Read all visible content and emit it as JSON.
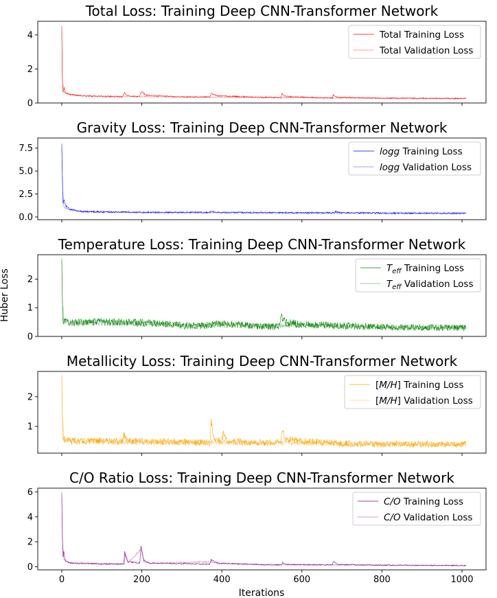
{
  "figure": {
    "ylabel": "Huber Loss",
    "xlabel": "Iterations"
  },
  "chart_data": [
    {
      "type": "line",
      "title": "Total Loss: Training Deep CNN-Transformer Network",
      "color": "#ff0000",
      "xlim": [
        -60,
        1060
      ],
      "ylim": [
        0,
        4.8
      ],
      "yticks": [
        0,
        2,
        4
      ],
      "ytick_labels": [
        "0",
        "2",
        "4"
      ],
      "xticks": [
        0,
        200,
        400,
        600,
        800,
        1000
      ],
      "xticklabels_visible": false,
      "legend": {
        "position": "top-right",
        "entries": [
          {
            "label_pre": "",
            "label_math": "",
            "label_sub": "",
            "label_post": "Total Training Loss",
            "style": "solid"
          },
          {
            "label_pre": "",
            "label_math": "",
            "label_sub": "",
            "label_post": "Total Validation Loss",
            "style": "dotted"
          }
        ]
      },
      "series": [
        {
          "kind": "train",
          "style": "solid",
          "x_start": 0,
          "x_end": 1010,
          "noise": 0.03,
          "points": [
            [
              0,
              4.5
            ],
            [
              1,
              1.8
            ],
            [
              3,
              0.65
            ],
            [
              6,
              0.9
            ],
            [
              10,
              0.6
            ],
            [
              20,
              0.5
            ],
            [
              50,
              0.42
            ],
            [
              100,
              0.38
            ],
            [
              150,
              0.37
            ],
            [
              157,
              0.6
            ],
            [
              165,
              0.42
            ],
            [
              195,
              0.38
            ],
            [
              199,
              0.7
            ],
            [
              210,
              0.45
            ],
            [
              300,
              0.36
            ],
            [
              370,
              0.35
            ],
            [
              373,
              0.58
            ],
            [
              390,
              0.42
            ],
            [
              500,
              0.33
            ],
            [
              548,
              0.32
            ],
            [
              550,
              0.55
            ],
            [
              560,
              0.38
            ],
            [
              650,
              0.3
            ],
            [
              676,
              0.3
            ],
            [
              678,
              0.45
            ],
            [
              690,
              0.33
            ],
            [
              800,
              0.28
            ],
            [
              1010,
              0.26
            ]
          ]
        },
        {
          "kind": "val",
          "style": "dotted",
          "x_start": 0,
          "x_end": 1010,
          "noise": 0.02,
          "points": [
            [
              0,
              4.2
            ],
            [
              2,
              1.2
            ],
            [
              5,
              0.7
            ],
            [
              10,
              0.55
            ],
            [
              50,
              0.42
            ],
            [
              200,
              0.37
            ],
            [
              400,
              0.34
            ],
            [
              600,
              0.31
            ],
            [
              800,
              0.28
            ],
            [
              1010,
              0.27
            ]
          ]
        }
      ]
    },
    {
      "type": "line",
      "title": "Gravity Loss: Training Deep CNN-Transformer Network",
      "color": "#0000ff",
      "xlim": [
        -60,
        1060
      ],
      "ylim": [
        -0.3,
        8.6
      ],
      "yticks": [
        0,
        2.5,
        5,
        7.5
      ],
      "ytick_labels": [
        "0.0",
        "2.5",
        "5.0",
        "7.5"
      ],
      "xticks": [
        0,
        200,
        400,
        600,
        800,
        1000
      ],
      "xticklabels_visible": false,
      "legend": {
        "position": "top-right",
        "entries": [
          {
            "label_pre": "",
            "label_math": "logg",
            "label_sub": "",
            "label_post": " Training Loss",
            "style": "solid"
          },
          {
            "label_pre": "",
            "label_math": "logg",
            "label_sub": "",
            "label_post": " Validation Loss",
            "style": "dotted"
          }
        ]
      },
      "series": [
        {
          "kind": "train",
          "style": "solid",
          "x_start": 0,
          "x_end": 1010,
          "noise": 0.06,
          "points": [
            [
              0,
              8.1
            ],
            [
              1,
              5.5
            ],
            [
              3,
              1.5
            ],
            [
              6,
              1.8
            ],
            [
              10,
              1.2
            ],
            [
              20,
              0.8
            ],
            [
              50,
              0.6
            ],
            [
              100,
              0.55
            ],
            [
              200,
              0.5
            ],
            [
              370,
              0.5
            ],
            [
              373,
              0.65
            ],
            [
              385,
              0.5
            ],
            [
              600,
              0.45
            ],
            [
              680,
              0.45
            ],
            [
              683,
              0.6
            ],
            [
              700,
              0.45
            ],
            [
              850,
              0.4
            ],
            [
              1010,
              0.4
            ]
          ]
        },
        {
          "kind": "val",
          "style": "dotted",
          "x_start": 0,
          "x_end": 1010,
          "noise": 0.04,
          "points": [
            [
              0,
              7.5
            ],
            [
              2,
              3.0
            ],
            [
              5,
              1.2
            ],
            [
              10,
              0.9
            ],
            [
              50,
              0.6
            ],
            [
              200,
              0.5
            ],
            [
              600,
              0.45
            ],
            [
              1010,
              0.42
            ]
          ]
        }
      ]
    },
    {
      "type": "line",
      "title": "Temperature Loss: Training Deep CNN-Transformer Network",
      "color": "#008000",
      "xlim": [
        -60,
        1060
      ],
      "ylim": [
        0,
        2.85
      ],
      "yticks": [
        0,
        1,
        2
      ],
      "ytick_labels": [
        "0",
        "1",
        "2"
      ],
      "xticks": [
        0,
        200,
        400,
        600,
        800,
        1000
      ],
      "xticklabels_visible": false,
      "legend": {
        "position": "top-right",
        "entries": [
          {
            "label_pre": "",
            "label_math": "T",
            "label_sub": "eff",
            "label_post": " Training Loss",
            "style": "solid"
          },
          {
            "label_pre": "",
            "label_math": "T",
            "label_sub": "eff",
            "label_post": " Validation Loss",
            "style": "dotted"
          }
        ]
      },
      "series": [
        {
          "kind": "train",
          "style": "solid",
          "x_start": 0,
          "x_end": 1010,
          "noise": 0.09,
          "points": [
            [
              0,
              2.7
            ],
            [
              1,
              1.5
            ],
            [
              3,
              0.55
            ],
            [
              20,
              0.48
            ],
            [
              100,
              0.5
            ],
            [
              150,
              0.5
            ],
            [
              200,
              0.48
            ],
            [
              250,
              0.45
            ],
            [
              300,
              0.38
            ],
            [
              350,
              0.36
            ],
            [
              400,
              0.45
            ],
            [
              450,
              0.4
            ],
            [
              500,
              0.35
            ],
            [
              545,
              0.35
            ],
            [
              548,
              0.7
            ],
            [
              560,
              0.5
            ],
            [
              600,
              0.42
            ],
            [
              700,
              0.38
            ],
            [
              800,
              0.32
            ],
            [
              1010,
              0.3
            ]
          ]
        },
        {
          "kind": "val",
          "style": "dotted",
          "x_start": 0,
          "x_end": 1010,
          "noise": 0.07,
          "points": [
            [
              0,
              2.75
            ],
            [
              2,
              1.1
            ],
            [
              5,
              0.5
            ],
            [
              100,
              0.48
            ],
            [
              200,
              0.46
            ],
            [
              300,
              0.38
            ],
            [
              400,
              0.42
            ],
            [
              500,
              0.36
            ],
            [
              600,
              0.4
            ],
            [
              800,
              0.33
            ],
            [
              1010,
              0.31
            ]
          ]
        }
      ]
    },
    {
      "type": "line",
      "title": "Metallicity Loss: Training Deep CNN-Transformer Network",
      "color": "#ffa500",
      "xlim": [
        -60,
        1060
      ],
      "ylim": [
        0.1,
        2.85
      ],
      "yticks": [
        1,
        2
      ],
      "ytick_labels": [
        "1",
        "2"
      ],
      "xticks": [
        0,
        200,
        400,
        600,
        800,
        1000
      ],
      "xticklabels_visible": false,
      "legend": {
        "position": "top-right",
        "entries": [
          {
            "label_pre": "[",
            "label_math": "M/H",
            "label_sub": "",
            "label_post": "] Training Loss",
            "style": "solid"
          },
          {
            "label_pre": "[",
            "label_math": "M/H",
            "label_sub": "",
            "label_post": "] Validation Loss",
            "style": "dotted"
          }
        ]
      },
      "series": [
        {
          "kind": "train",
          "style": "solid",
          "x_start": 0,
          "x_end": 1010,
          "noise": 0.08,
          "points": [
            [
              0,
              2.6
            ],
            [
              1,
              1.6
            ],
            [
              3,
              0.6
            ],
            [
              20,
              0.5
            ],
            [
              150,
              0.5
            ],
            [
              155,
              0.7
            ],
            [
              165,
              0.5
            ],
            [
              300,
              0.48
            ],
            [
              370,
              0.45
            ],
            [
              373,
              1.15
            ],
            [
              380,
              0.55
            ],
            [
              400,
              0.5
            ],
            [
              403,
              0.75
            ],
            [
              415,
              0.5
            ],
            [
              500,
              0.45
            ],
            [
              548,
              0.45
            ],
            [
              550,
              0.9
            ],
            [
              560,
              0.55
            ],
            [
              700,
              0.42
            ],
            [
              800,
              0.4
            ],
            [
              1010,
              0.4
            ]
          ]
        },
        {
          "kind": "val",
          "style": "dotted",
          "x_start": 0,
          "x_end": 1010,
          "noise": 0.06,
          "points": [
            [
              0,
              2.7
            ],
            [
              2,
              1.2
            ],
            [
              5,
              0.55
            ],
            [
              100,
              0.5
            ],
            [
              300,
              0.47
            ],
            [
              500,
              0.45
            ],
            [
              700,
              0.42
            ],
            [
              1010,
              0.4
            ]
          ]
        }
      ]
    },
    {
      "type": "line",
      "title": "C/O Ratio Loss: Training Deep CNN-Transformer Network",
      "color": "#800080",
      "xlim": [
        -60,
        1060
      ],
      "ylim": [
        -0.25,
        6.3
      ],
      "yticks": [
        0,
        2,
        4,
        6
      ],
      "ytick_labels": [
        "0",
        "2",
        "4",
        "6"
      ],
      "xticks": [
        0,
        200,
        400,
        600,
        800,
        1000
      ],
      "xticklabels_visible": true,
      "xtick_labels": [
        "0",
        "200",
        "400",
        "600",
        "800",
        "1000"
      ],
      "legend": {
        "position": "top-right",
        "entries": [
          {
            "label_pre": "",
            "label_math": "C/O",
            "label_sub": "",
            "label_post": " Training Loss",
            "style": "solid"
          },
          {
            "label_pre": "",
            "label_math": "C/O",
            "label_sub": "",
            "label_post": " Validation Loss",
            "style": "dotted"
          }
        ]
      },
      "series": [
        {
          "kind": "train",
          "style": "solid",
          "x_start": 0,
          "x_end": 1010,
          "noise": 0.04,
          "points": [
            [
              0,
              6.0
            ],
            [
              1,
              3.0
            ],
            [
              3,
              0.8
            ],
            [
              5,
              1.2
            ],
            [
              8,
              0.5
            ],
            [
              20,
              0.3
            ],
            [
              100,
              0.2
            ],
            [
              155,
              0.2
            ],
            [
              157,
              1.2
            ],
            [
              165,
              0.4
            ],
            [
              195,
              0.3
            ],
            [
              198,
              1.6
            ],
            [
              205,
              0.5
            ],
            [
              220,
              0.3
            ],
            [
              370,
              0.2
            ],
            [
              373,
              0.55
            ],
            [
              390,
              0.3
            ],
            [
              500,
              0.15
            ],
            [
              550,
              0.15
            ],
            [
              552,
              0.35
            ],
            [
              560,
              0.18
            ],
            [
              676,
              0.15
            ],
            [
              678,
              0.45
            ],
            [
              690,
              0.18
            ],
            [
              800,
              0.12
            ],
            [
              1010,
              0.1
            ]
          ]
        },
        {
          "kind": "val",
          "style": "dotted",
          "x_start": 0,
          "x_end": 1010,
          "noise": 0.03,
          "points": [
            [
              0,
              5.5
            ],
            [
              2,
              2.0
            ],
            [
              5,
              0.6
            ],
            [
              20,
              0.3
            ],
            [
              157,
              0.25
            ],
            [
              158,
              1.0
            ],
            [
              165,
              0.3
            ],
            [
              198,
              1.4
            ],
            [
              205,
              0.4
            ],
            [
              220,
              0.25
            ],
            [
              373,
              0.4
            ],
            [
              390,
              0.25
            ],
            [
              600,
              0.15
            ],
            [
              1010,
              0.1
            ]
          ]
        }
      ]
    }
  ]
}
